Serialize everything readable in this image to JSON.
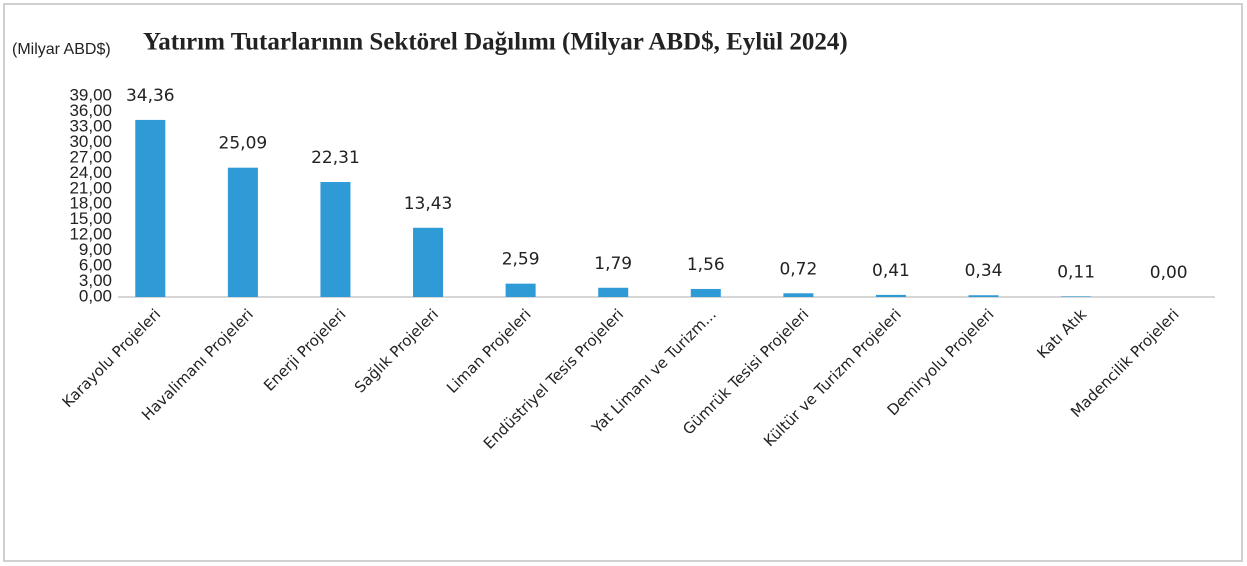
{
  "chart_data": {
    "type": "bar",
    "title": "Yatırım Tutarlarının Sektörel Dağılımı (Milyar ABD$, Eylül 2024)",
    "ylabel": "(Milyar ABD$)",
    "categories": [
      "Karayolu Projeleri",
      "Havalimanı Projeleri",
      "Enerji Projeleri",
      "Sağlık Projeleri",
      "Liman Projeleri",
      "Endüstriyel Tesis Projeleri",
      "Yat Limanı ve Turizm...",
      "Gümrük Tesisi Projeleri",
      "Kültür ve Turizm Projeleri",
      "Demiryolu Projeleri",
      "Katı Atık",
      "Madencilik Projeleri"
    ],
    "values": [
      34.36,
      25.09,
      22.31,
      13.43,
      2.59,
      1.79,
      1.56,
      0.72,
      0.41,
      0.34,
      0.11,
      0.0
    ],
    "value_labels": [
      "34,36",
      "25,09",
      "22,31",
      "13,43",
      "2,59",
      "1,79",
      "1,56",
      "0,72",
      "0,41",
      "0,34",
      "0,11",
      "0,00"
    ],
    "color": "#2e9ad6",
    "ylim": [
      0,
      39
    ],
    "yticks": [
      {
        "value": 0,
        "label": "0,00"
      },
      {
        "value": 3,
        "label": "3,00"
      },
      {
        "value": 6,
        "label": "6,00"
      },
      {
        "value": 9,
        "label": "9,00"
      },
      {
        "value": 12,
        "label": "12,00"
      },
      {
        "value": 15,
        "label": "15,00"
      },
      {
        "value": 18,
        "label": "18,00"
      },
      {
        "value": 21,
        "label": "21,00"
      },
      {
        "value": 24,
        "label": "24,00"
      },
      {
        "value": 27,
        "label": "27,00"
      },
      {
        "value": 30,
        "label": "30,00"
      },
      {
        "value": 33,
        "label": "33,00"
      },
      {
        "value": 36,
        "label": "36,00"
      },
      {
        "value": 39,
        "label": "39,00"
      }
    ],
    "grid": false
  }
}
